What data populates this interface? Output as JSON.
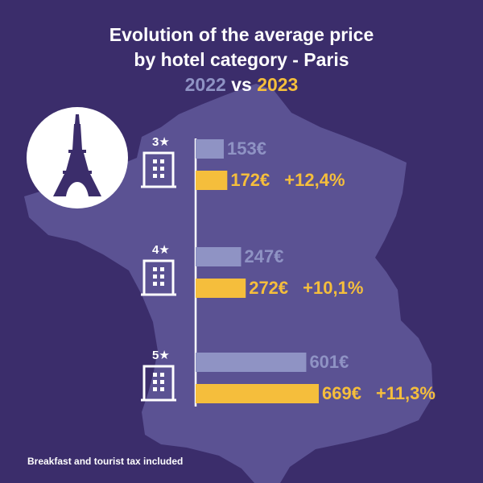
{
  "title_line1": "Evolution of the average price",
  "title_line2": "by hotel category - Paris",
  "subtitle": {
    "year_a": "2022",
    "vs": "vs",
    "year_b": "2023"
  },
  "footnote": "Breakfast and tourist tax included",
  "icons": {
    "landmark": "eiffel-tower-icon",
    "building": "hotel-building-icon",
    "star": "star-icon"
  },
  "colors": {
    "background": "#3b2d6b",
    "map": "#5b5293",
    "series_2022": "#8f93c4",
    "series_2023": "#f5be3c",
    "text": "#ffffff"
  },
  "chart_data": {
    "type": "bar",
    "title": "Evolution of the average price by hotel category - Paris",
    "subtitle": "2022 vs 2023",
    "categories": [
      "3★",
      "4★",
      "5★"
    ],
    "series": [
      {
        "name": "2022",
        "values": [
          153,
          247,
          601
        ],
        "labels": [
          "153€",
          "247€",
          "601€"
        ]
      },
      {
        "name": "2023",
        "values": [
          172,
          272,
          669
        ],
        "labels": [
          "172€",
          "272€",
          "669€"
        ]
      }
    ],
    "changes": [
      "+12,4%",
      "+10,1%",
      "+11,3%"
    ],
    "orientation": "horizontal",
    "grid": false
  }
}
